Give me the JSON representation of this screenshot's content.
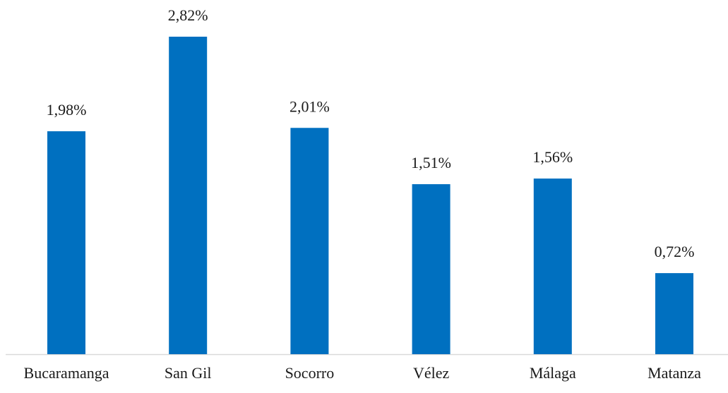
{
  "chart_data": {
    "type": "bar",
    "categories": [
      "Bucaramanga",
      "San Gil",
      "Socorro",
      "Vélez",
      "Málaga",
      "Matanza"
    ],
    "values": [
      1.98,
      2.82,
      2.01,
      1.51,
      1.56,
      0.72
    ],
    "value_labels": [
      "1,98%",
      "2,82%",
      "2,01%",
      "1,51%",
      "1,56%",
      "0,72%"
    ],
    "color": "#0070c0"
  }
}
